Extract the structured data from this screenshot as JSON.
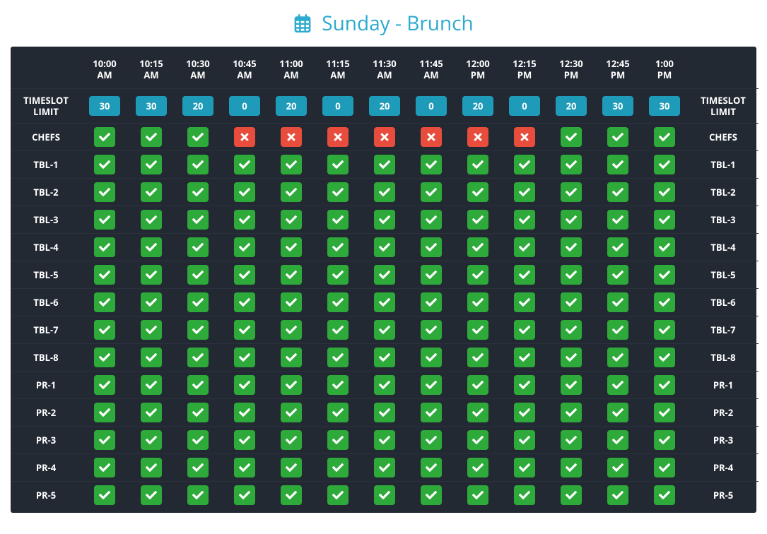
{
  "title": "Sunday - Brunch",
  "title_color": "#2daacf",
  "colors": {
    "panel_bg": "#222933",
    "divider": "#2b323d",
    "text": "#ffffff",
    "limit_pill": "#1e9bb8",
    "check_bg": "#2eaa3a",
    "x_bg": "#e74c3c"
  },
  "side_label": "TIMESLOT LIMIT",
  "timeslots": [
    {
      "t1": "10:00",
      "t2": "AM"
    },
    {
      "t1": "10:15",
      "t2": "AM"
    },
    {
      "t1": "10:30",
      "t2": "AM"
    },
    {
      "t1": "10:45",
      "t2": "AM"
    },
    {
      "t1": "11:00",
      "t2": "AM"
    },
    {
      "t1": "11:15",
      "t2": "AM"
    },
    {
      "t1": "11:30",
      "t2": "AM"
    },
    {
      "t1": "11:45",
      "t2": "AM"
    },
    {
      "t1": "12:00",
      "t2": "PM"
    },
    {
      "t1": "12:15",
      "t2": "PM"
    },
    {
      "t1": "12:30",
      "t2": "PM"
    },
    {
      "t1": "12:45",
      "t2": "PM"
    },
    {
      "t1": "1:00",
      "t2": "PM"
    }
  ],
  "limits": [
    "30",
    "30",
    "20",
    "0",
    "20",
    "0",
    "20",
    "0",
    "20",
    "0",
    "20",
    "30",
    "30"
  ],
  "rows": [
    {
      "label": "CHEFS",
      "cells": [
        "check",
        "check",
        "check",
        "x",
        "x",
        "x",
        "x",
        "x",
        "x",
        "x",
        "check",
        "check",
        "check"
      ]
    },
    {
      "label": "TBL-1",
      "cells": [
        "check",
        "check",
        "check",
        "check",
        "check",
        "check",
        "check",
        "check",
        "check",
        "check",
        "check",
        "check",
        "check"
      ]
    },
    {
      "label": "TBL-2",
      "cells": [
        "check",
        "check",
        "check",
        "check",
        "check",
        "check",
        "check",
        "check",
        "check",
        "check",
        "check",
        "check",
        "check"
      ]
    },
    {
      "label": "TBL-3",
      "cells": [
        "check",
        "check",
        "check",
        "check",
        "check",
        "check",
        "check",
        "check",
        "check",
        "check",
        "check",
        "check",
        "check"
      ]
    },
    {
      "label": "TBL-4",
      "cells": [
        "check",
        "check",
        "check",
        "check",
        "check",
        "check",
        "check",
        "check",
        "check",
        "check",
        "check",
        "check",
        "check"
      ]
    },
    {
      "label": "TBL-5",
      "cells": [
        "check",
        "check",
        "check",
        "check",
        "check",
        "check",
        "check",
        "check",
        "check",
        "check",
        "check",
        "check",
        "check"
      ]
    },
    {
      "label": "TBL-6",
      "cells": [
        "check",
        "check",
        "check",
        "check",
        "check",
        "check",
        "check",
        "check",
        "check",
        "check",
        "check",
        "check",
        "check"
      ]
    },
    {
      "label": "TBL-7",
      "cells": [
        "check",
        "check",
        "check",
        "check",
        "check",
        "check",
        "check",
        "check",
        "check",
        "check",
        "check",
        "check",
        "check"
      ]
    },
    {
      "label": "TBL-8",
      "cells": [
        "check",
        "check",
        "check",
        "check",
        "check",
        "check",
        "check",
        "check",
        "check",
        "check",
        "check",
        "check",
        "check"
      ]
    },
    {
      "label": "PR-1",
      "cells": [
        "check",
        "check",
        "check",
        "check",
        "check",
        "check",
        "check",
        "check",
        "check",
        "check",
        "check",
        "check",
        "check"
      ]
    },
    {
      "label": "PR-2",
      "cells": [
        "check",
        "check",
        "check",
        "check",
        "check",
        "check",
        "check",
        "check",
        "check",
        "check",
        "check",
        "check",
        "check"
      ]
    },
    {
      "label": "PR-3",
      "cells": [
        "check",
        "check",
        "check",
        "check",
        "check",
        "check",
        "check",
        "check",
        "check",
        "check",
        "check",
        "check",
        "check"
      ]
    },
    {
      "label": "PR-4",
      "cells": [
        "check",
        "check",
        "check",
        "check",
        "check",
        "check",
        "check",
        "check",
        "check",
        "check",
        "check",
        "check",
        "check"
      ]
    },
    {
      "label": "PR-5",
      "cells": [
        "check",
        "check",
        "check",
        "check",
        "check",
        "check",
        "check",
        "check",
        "check",
        "check",
        "check",
        "check",
        "check"
      ]
    }
  ]
}
